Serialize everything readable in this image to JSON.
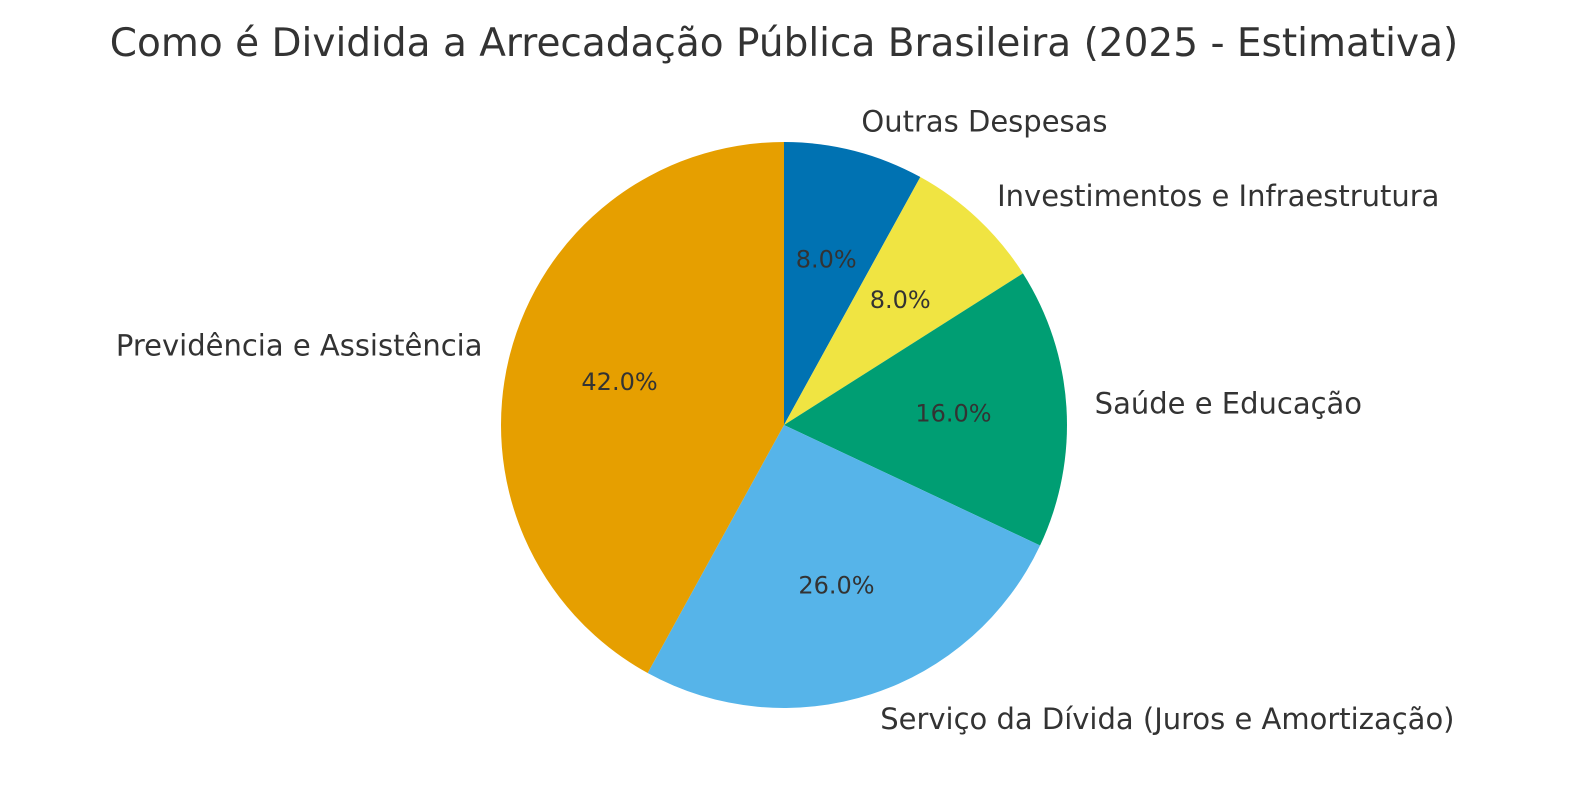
{
  "chart_data": {
    "type": "pie",
    "title": "Como é Dividida a Arrecadação Pública Brasileira (2025 - Estimativa)",
    "start_angle_deg": 90,
    "direction": "clockwise",
    "slices": [
      {
        "label": "Outras Despesas",
        "value": 8.0,
        "pct_label": "8.0%",
        "color": "#0072B2"
      },
      {
        "label": "Investimentos e Infraestrutura",
        "value": 8.0,
        "pct_label": "8.0%",
        "color": "#F0E442"
      },
      {
        "label": "Saúde e Educação",
        "value": 16.0,
        "pct_label": "16.0%",
        "color": "#009E73"
      },
      {
        "label": "Serviço da Dívida (Juros e Amortização)",
        "value": 26.0,
        "pct_label": "26.0%",
        "color": "#56B4E9"
      },
      {
        "label": "Previdência e Assistência",
        "value": 42.0,
        "pct_label": "42.0%",
        "color": "#E69F00"
      }
    ]
  }
}
